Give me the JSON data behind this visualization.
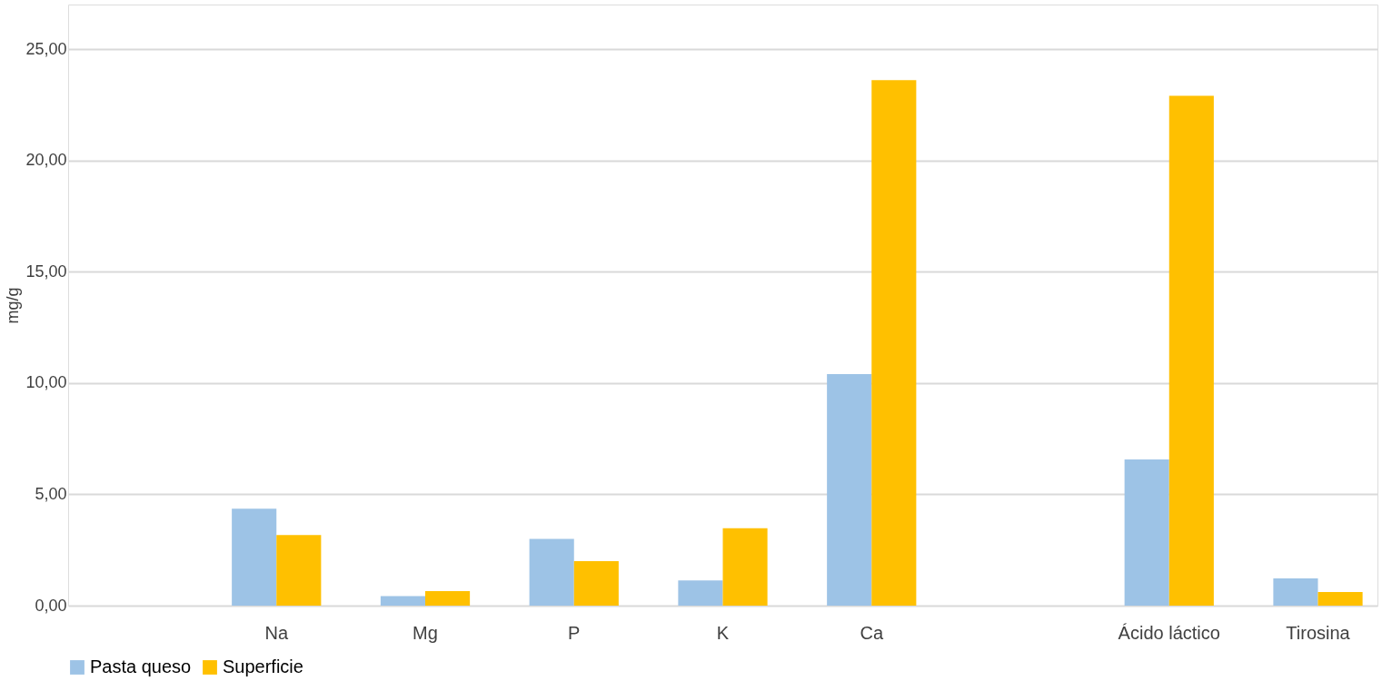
{
  "chart_data": {
    "type": "bar",
    "ylabel": "mg/g",
    "categories": [
      null,
      "Na",
      "Mg",
      "P",
      "K",
      "Ca",
      null,
      "Ácido láctico",
      "Tirosina"
    ],
    "series": [
      {
        "name": "Pasta queso",
        "color": "#9dc3e6",
        "values": [
          null,
          4.35,
          0.43,
          3.0,
          1.13,
          10.4,
          null,
          6.57,
          1.22
        ]
      },
      {
        "name": "Superficie",
        "color": "#ffc000",
        "values": [
          null,
          3.17,
          0.65,
          2.0,
          3.48,
          23.6,
          null,
          22.9,
          0.61
        ]
      }
    ],
    "ylim": [
      0,
      27
    ],
    "yticks": [
      {
        "value": 0,
        "label": "0,00"
      },
      {
        "value": 5,
        "label": "5,00"
      },
      {
        "value": 10,
        "label": "10,00"
      },
      {
        "value": 15,
        "label": "15,00"
      },
      {
        "value": 20,
        "label": "20,00"
      },
      {
        "value": 25,
        "label": "25,00"
      }
    ],
    "grid": "y",
    "legend": "bottom"
  }
}
